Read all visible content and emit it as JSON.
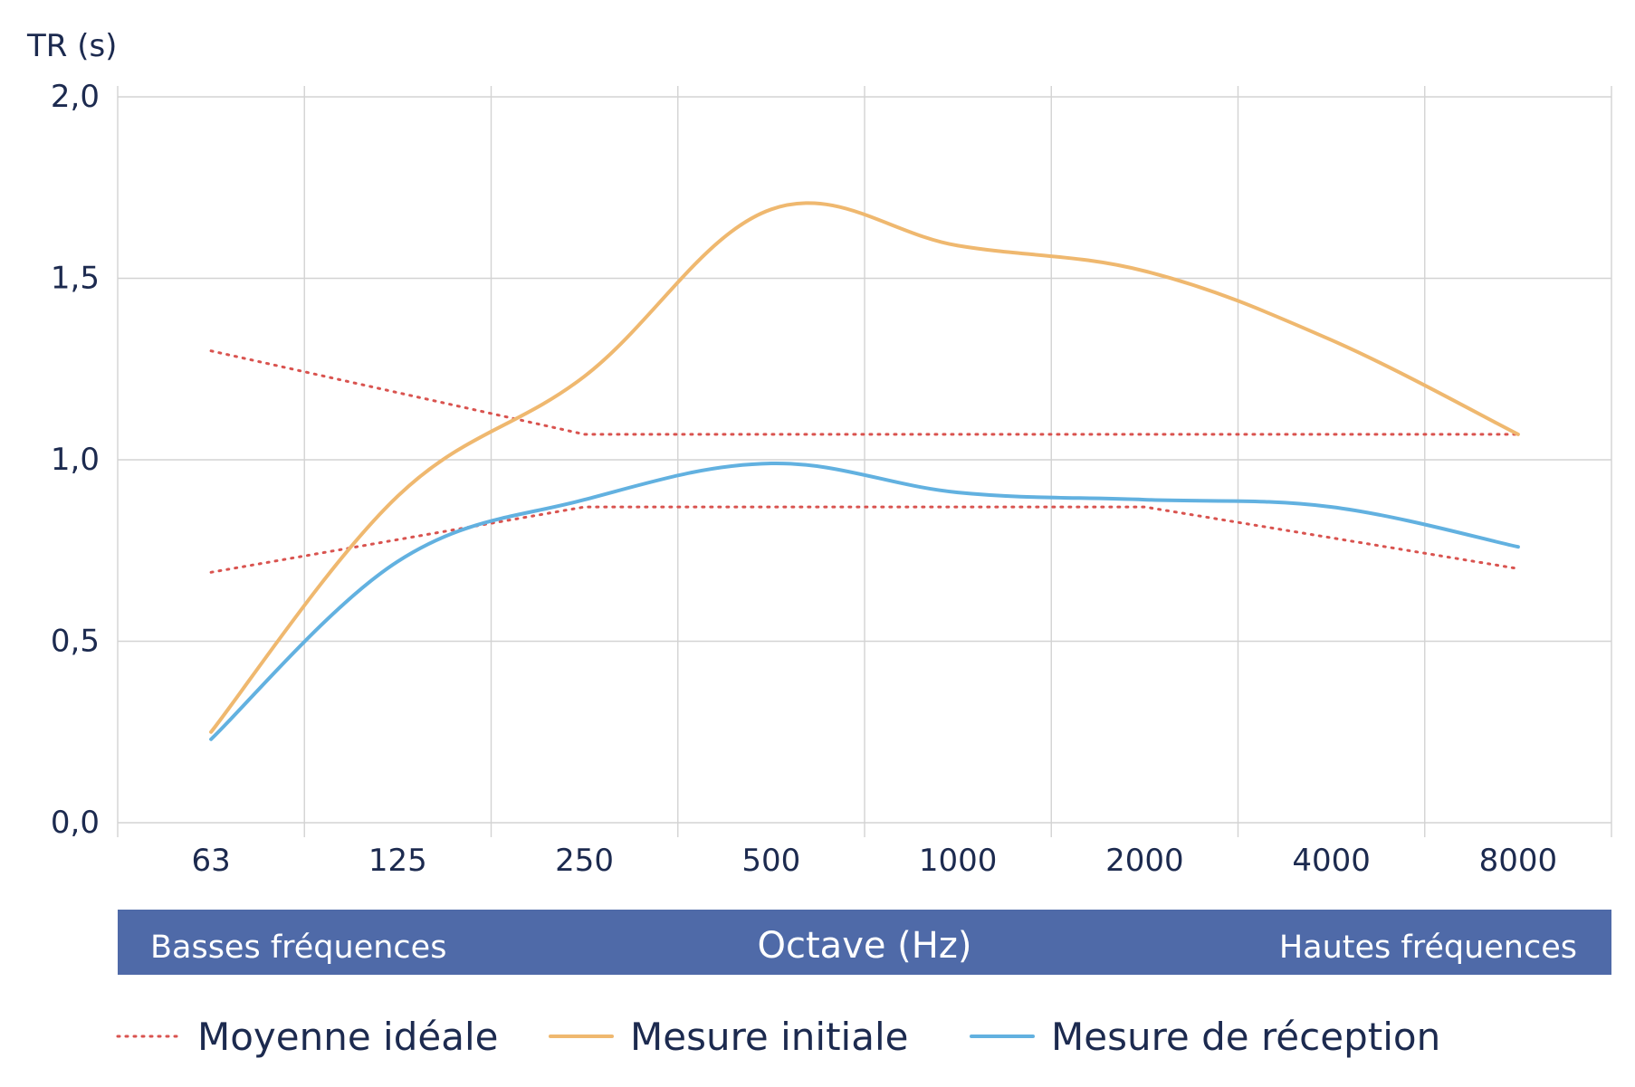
{
  "chart_data": {
    "type": "line",
    "ylabel": "TR (s)",
    "ylim": [
      0,
      2
    ],
    "y_ticks": [
      "0,0",
      "0,5",
      "1,0",
      "1,5",
      "2,0"
    ],
    "y_tick_values": [
      0,
      0.5,
      1.0,
      1.5,
      2.0
    ],
    "categories": [
      "63",
      "125",
      "250",
      "500",
      "1000",
      "2000",
      "4000",
      "8000"
    ],
    "xlabel": "Octave (Hz)",
    "band": {
      "left": "Basses fréquences",
      "center": "Octave (Hz)",
      "right": "Hautes fréquences",
      "color": "#4f6aa8"
    },
    "grid": true,
    "legend_position": "bottom",
    "series": [
      {
        "name": "Moyenne idéale",
        "style": "dotted",
        "color": "#d9534f",
        "role": "upper",
        "points": [
          [
            0,
            1.3
          ],
          [
            2,
            1.07
          ],
          [
            7,
            1.07
          ]
        ]
      },
      {
        "name": "Moyenne idéale",
        "style": "dotted",
        "color": "#d9534f",
        "role": "lower",
        "points": [
          [
            0,
            0.69
          ],
          [
            2,
            0.87
          ],
          [
            5,
            0.87
          ],
          [
            7,
            0.7
          ]
        ]
      },
      {
        "name": "Mesure initiale",
        "style": "solid",
        "color": "#efb86f",
        "values": [
          0.25,
          0.9,
          1.23,
          1.69,
          1.59,
          1.52,
          1.33,
          1.07
        ]
      },
      {
        "name": "Mesure de réception",
        "style": "solid",
        "color": "#62b1e0",
        "values": [
          0.23,
          0.72,
          0.89,
          0.99,
          0.91,
          0.89,
          0.87,
          0.76
        ]
      }
    ],
    "legend": [
      {
        "label": "Moyenne idéale",
        "style": "dotted",
        "color": "#d9534f"
      },
      {
        "label": "Mesure initiale",
        "style": "solid",
        "color": "#efb86f"
      },
      {
        "label": "Mesure de réception",
        "style": "solid",
        "color": "#62b1e0"
      }
    ]
  }
}
